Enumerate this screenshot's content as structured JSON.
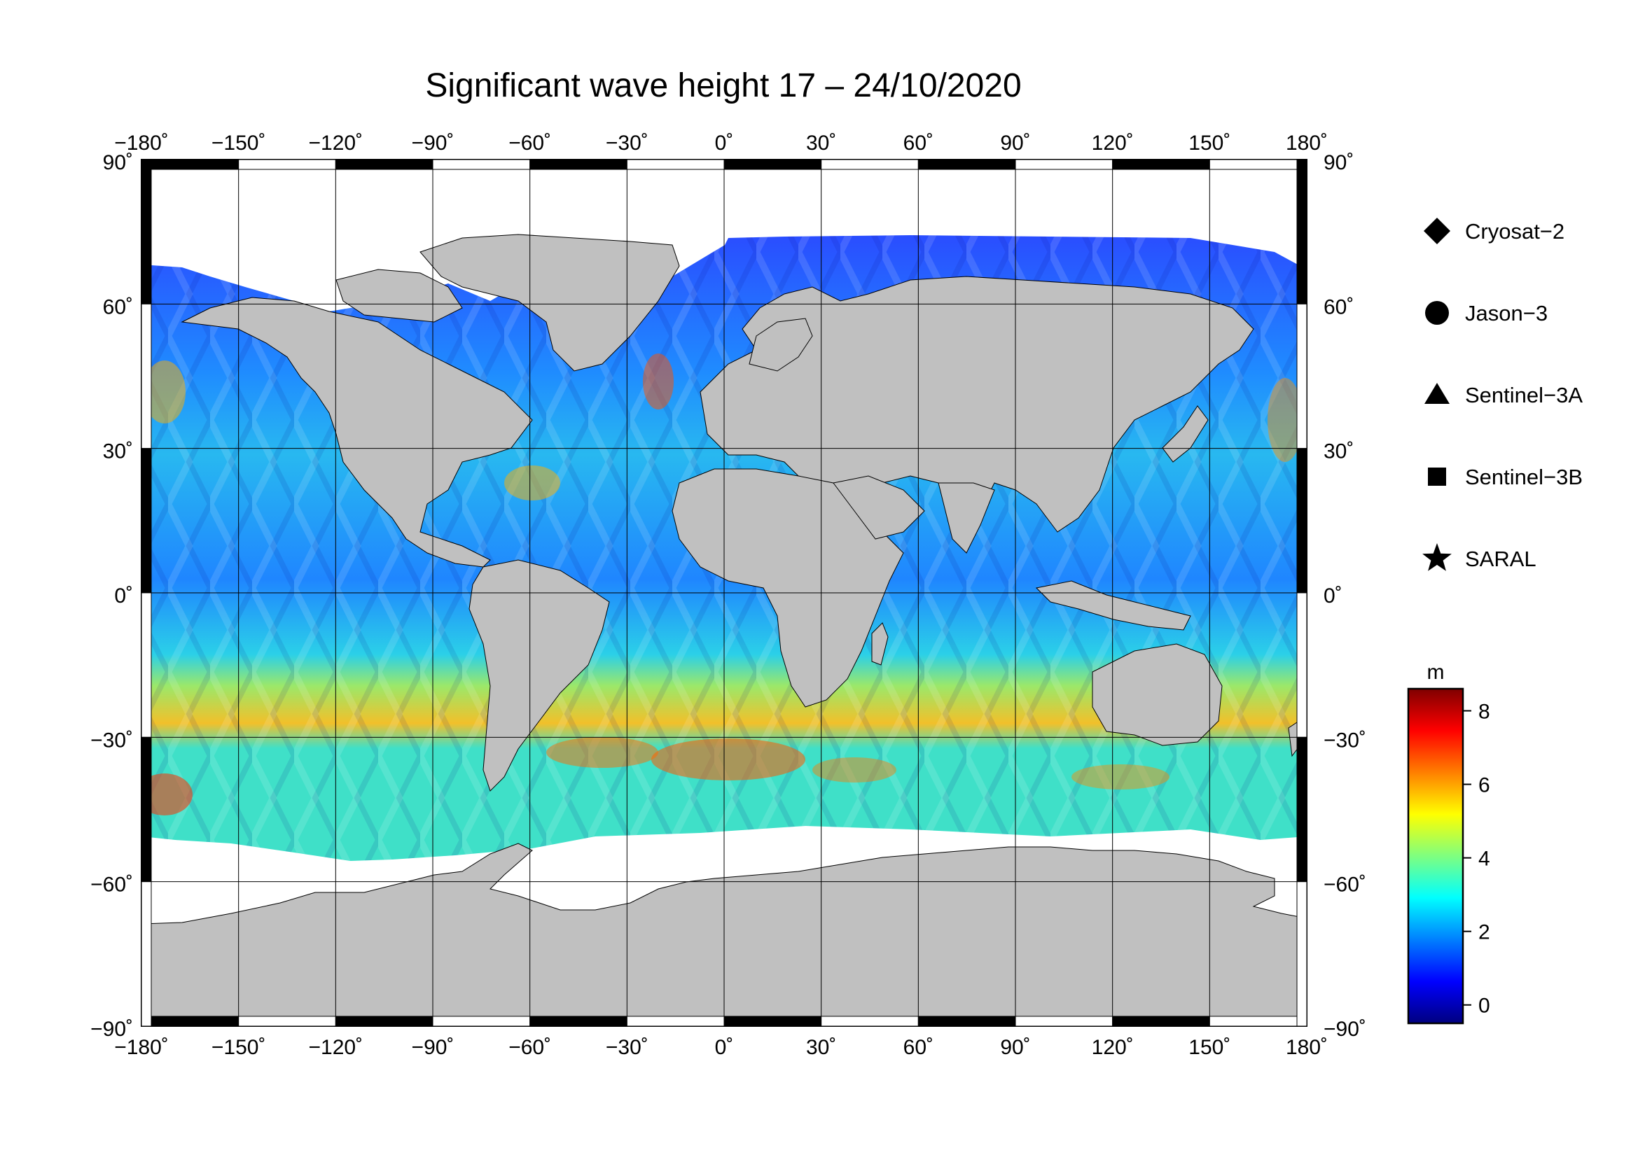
{
  "title": "Significant wave height 17 – 24/10/2020",
  "map": {
    "projection": "plate-carree",
    "lon_range": [
      -180,
      180
    ],
    "lat_range": [
      -90,
      90
    ],
    "lon_ticks": [
      {
        "value": -180,
        "label": "−180˚"
      },
      {
        "value": -150,
        "label": "−150˚"
      },
      {
        "value": -120,
        "label": "−120˚"
      },
      {
        "value": -90,
        "label": "−90˚"
      },
      {
        "value": -60,
        "label": "−60˚"
      },
      {
        "value": -30,
        "label": "−30˚"
      },
      {
        "value": 0,
        "label": "0˚"
      },
      {
        "value": 30,
        "label": "30˚"
      },
      {
        "value": 60,
        "label": "60˚"
      },
      {
        "value": 90,
        "label": "90˚"
      },
      {
        "value": 120,
        "label": "120˚"
      },
      {
        "value": 150,
        "label": "150˚"
      },
      {
        "value": 180,
        "label": "180˚"
      }
    ],
    "lat_ticks": [
      {
        "value": 90,
        "label": "90˚"
      },
      {
        "value": 60,
        "label": "60˚"
      },
      {
        "value": 30,
        "label": "30˚"
      },
      {
        "value": 0,
        "label": "0˚"
      },
      {
        "value": -30,
        "label": "−30˚"
      },
      {
        "value": -60,
        "label": "−60˚"
      },
      {
        "value": -90,
        "label": "−90˚"
      }
    ],
    "grid": true,
    "land_color": "#c0c0c0",
    "ice_color": "#ffffff"
  },
  "legend": [
    {
      "marker": "diamond",
      "label": "Cryosat−2"
    },
    {
      "marker": "circle",
      "label": "Jason−3"
    },
    {
      "marker": "triangle",
      "label": "Sentinel−3A"
    },
    {
      "marker": "square",
      "label": "Sentinel−3B"
    },
    {
      "marker": "star",
      "label": "SARAL"
    }
  ],
  "colorbar": {
    "unit": "m",
    "range": [
      -0.5,
      8.6
    ],
    "ticks": [
      {
        "value": 0,
        "label": "0"
      },
      {
        "value": 2,
        "label": "2"
      },
      {
        "value": 4,
        "label": "4"
      },
      {
        "value": 6,
        "label": "6"
      },
      {
        "value": 8,
        "label": "8"
      }
    ],
    "colormap": [
      "#00007f",
      "#0000ff",
      "#007fff",
      "#00ffff",
      "#7fff7f",
      "#ffff00",
      "#ff7f00",
      "#ff0000",
      "#7f0000"
    ]
  }
}
